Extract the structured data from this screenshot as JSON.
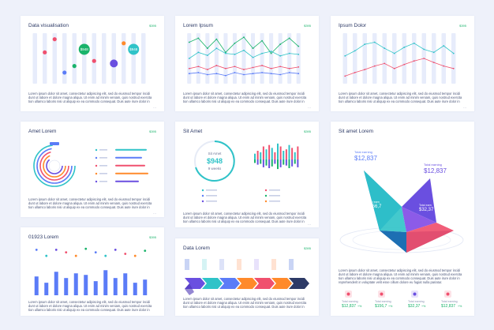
{
  "description": "Lorem ipsum dolor sit amet, consectetur adipiscing elit, sed do eiusmod tempor incidi dunt ut labore et dolore magna aliqua. Ut enim ad minim veniam, quis nostrud exercita tion ullamco laboris nisi ut aliquip ex ea commodo consequat. Duis aute irure dolor in",
  "description_long": "Lorem ipsum dolor sit amet, consectetur adipiscing elit, sed do eiusmod tempor incidi dunt ut labore et dolore magna aliqua. Ut enim ad minim veniam, quis nostrud exercita tion ullamco laboris nisi ut aliquip ex ea commodo consequat. Duis aute irure dolor in reprehenderit in voluptate velit esse cillum dolore eu fugiat nulla pariatur.",
  "more": "···",
  "colors": {
    "accent": "#5b7cf7",
    "purple": "#6a4fe0",
    "teal": "#2fc3c8",
    "green": "#19b36b",
    "red": "#f0506e",
    "orange": "#ff8a2b",
    "bg": "#eef1fa"
  },
  "cards": {
    "c1": {
      "title": "Data visualisation",
      "badge": "$395"
    },
    "c2": {
      "title": "Lorem Ipsum",
      "badge": "$395"
    },
    "c3": {
      "title": "Ipsum Dolor",
      "badge": "$395"
    },
    "c4": {
      "title": "Amet Lorem",
      "badge": "$395"
    },
    "c5": {
      "title": "Sit Amet",
      "badge": "$395"
    },
    "c6": {
      "title": "Sit amet Lorem",
      "badge": "$395"
    },
    "c7": {
      "title": "01923 Lorem",
      "badge": "$395"
    },
    "c8": {
      "title": "Data Lorem",
      "badge": "$395"
    }
  },
  "gauge": {
    "label": "Sit Amet",
    "value": "$948",
    "sub": "9 weeks"
  },
  "triangle": {
    "l1": "Total earning",
    "v1": "$12,837",
    "l2": "Total earning",
    "v2": "$12,837",
    "l3": "Total earn",
    "v3": "$156,7",
    "l4": "Total earn",
    "v4": "$32,37"
  },
  "stats": [
    {
      "label": "Total earning",
      "value": "$12,837",
      "delta": "+%"
    },
    {
      "label": "Total earning",
      "value": "$156,7",
      "delta": "+%"
    },
    {
      "label": "Total earning",
      "value": "$32,37",
      "delta": "+%"
    },
    {
      "label": "Total earning",
      "value": "$12,837",
      "delta": "+%"
    }
  ],
  "chart_data": [
    {
      "type": "scatter",
      "card": "c1",
      "columns": 12,
      "points": [
        {
          "x": 2,
          "y": 0.62,
          "r": "small",
          "color": "#f0506e"
        },
        {
          "x": 3,
          "y": 0.88,
          "r": "small",
          "color": "#f0506e"
        },
        {
          "x": 4,
          "y": 0.22,
          "r": "small",
          "color": "#5b7cf7"
        },
        {
          "x": 5,
          "y": 0.35,
          "r": "small",
          "color": "#19b36b"
        },
        {
          "x": 6,
          "y": 0.68,
          "r": "large",
          "color": "#19b36b",
          "label": "$948"
        },
        {
          "x": 7,
          "y": 0.45,
          "r": "small",
          "color": "#f0506e"
        },
        {
          "x": 9,
          "y": 0.4,
          "r": "medium",
          "color": "#6a4fe0"
        },
        {
          "x": 10,
          "y": 0.8,
          "r": "small",
          "color": "#ff8a2b"
        },
        {
          "x": 11,
          "y": 0.68,
          "r": "large",
          "color": "#2fc3c8",
          "label": "$948"
        }
      ]
    },
    {
      "type": "line",
      "card": "c2",
      "columns": 13,
      "series": [
        {
          "color": "#19b36b",
          "values": [
            0.82,
            0.9,
            0.7,
            0.88,
            0.62,
            0.8,
            0.92,
            0.7,
            0.85,
            0.6,
            0.78,
            0.9,
            0.74
          ]
        },
        {
          "color": "#2fc3c8",
          "values": [
            0.5,
            0.62,
            0.56,
            0.7,
            0.6,
            0.58,
            0.66,
            0.52,
            0.6,
            0.64,
            0.55,
            0.6,
            0.58
          ]
        },
        {
          "color": "#f0506e",
          "values": [
            0.3,
            0.34,
            0.28,
            0.36,
            0.3,
            0.34,
            0.28,
            0.32,
            0.36,
            0.3,
            0.34,
            0.3,
            0.33
          ]
        },
        {
          "color": "#5b7cf7",
          "values": [
            0.2,
            0.22,
            0.18,
            0.2,
            0.16,
            0.22,
            0.18,
            0.2,
            0.22,
            0.2,
            0.18,
            0.22,
            0.2
          ]
        }
      ]
    },
    {
      "type": "line",
      "card": "c3",
      "columns": 12,
      "series": [
        {
          "color": "#2fc3c8",
          "values": [
            0.55,
            0.65,
            0.78,
            0.82,
            0.7,
            0.6,
            0.72,
            0.8,
            0.68,
            0.62,
            0.75,
            0.6
          ]
        },
        {
          "color": "#f0506e",
          "values": [
            0.15,
            0.22,
            0.28,
            0.35,
            0.4,
            0.3,
            0.38,
            0.45,
            0.5,
            0.42,
            0.35,
            0.3
          ]
        }
      ]
    },
    {
      "type": "bar",
      "card": "c5",
      "values": [
        8,
        12,
        10,
        18,
        14,
        20,
        16,
        10,
        22,
        18,
        12,
        14,
        20,
        16,
        10,
        18
      ]
    },
    {
      "type": "bar",
      "card": "c7",
      "columns": 12,
      "values": [
        0.6,
        0.4,
        0.75,
        0.55,
        0.7,
        0.65,
        0.45,
        0.8,
        0.55,
        0.7,
        0.4,
        0.5
      ],
      "dots": [
        0.9,
        0.78,
        0.9,
        0.85,
        0.78,
        0.92,
        0.85,
        0.78,
        0.9,
        0.82,
        0.78,
        0.88
      ]
    }
  ]
}
